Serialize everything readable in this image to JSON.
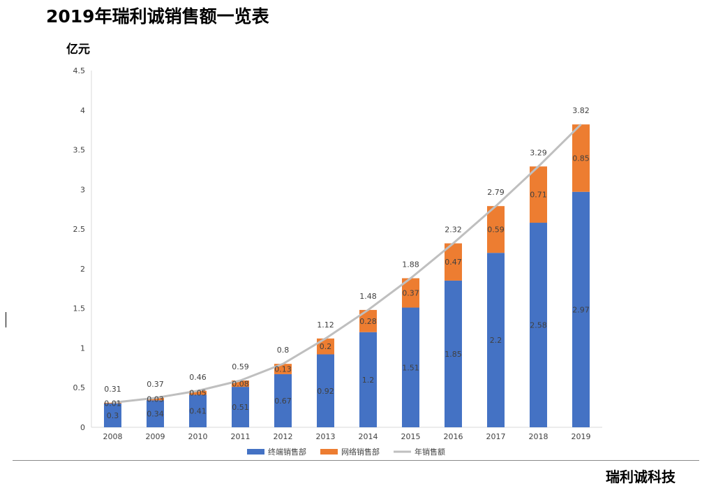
{
  "title": "2019年瑞利诚销售额一览表",
  "footer": "瑞利诚科技",
  "colors": {
    "terminal": "#4472C4",
    "online": "#ED7D31",
    "total": "#BFBFBF",
    "axis": "#D9D9D9",
    "text": "#404040"
  },
  "chart_data": {
    "type": "bar",
    "stacked": true,
    "ylabel": "亿元",
    "ylim": [
      0,
      4.5
    ],
    "yticks": [
      "0",
      "0.5",
      "1",
      "1.5",
      "2",
      "2.5",
      "3",
      "3.5",
      "4",
      "4.5"
    ],
    "categories": [
      "2008",
      "2009",
      "2010",
      "2011",
      "2012",
      "2013",
      "2014",
      "2015",
      "2016",
      "2017",
      "2018",
      "2019"
    ],
    "series": [
      {
        "name": "终端销售部",
        "type": "bar",
        "values": [
          0.3,
          0.34,
          0.41,
          0.51,
          0.67,
          0.92,
          1.2,
          1.51,
          1.85,
          2.2,
          2.58,
          2.97
        ]
      },
      {
        "name": "网络销售部",
        "type": "bar",
        "values": [
          0.01,
          0.03,
          0.05,
          0.08,
          0.13,
          0.2,
          0.28,
          0.37,
          0.47,
          0.59,
          0.71,
          0.85
        ]
      },
      {
        "name": "年销售额",
        "type": "line",
        "values": [
          0.31,
          0.37,
          0.46,
          0.59,
          0.8,
          1.12,
          1.48,
          1.88,
          2.32,
          2.79,
          3.29,
          3.82
        ]
      }
    ],
    "legend": "bottom"
  }
}
